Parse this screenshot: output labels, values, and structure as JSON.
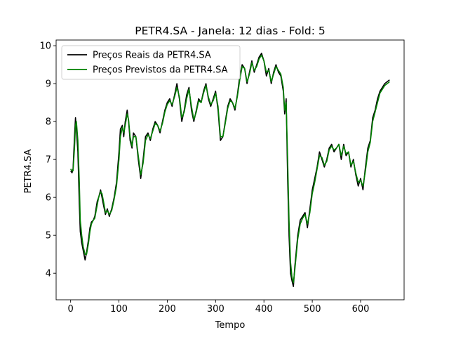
{
  "chart_data": {
    "type": "line",
    "title": "PETR4.SA - Janela: 12 dias - Fold: 5",
    "xlabel": "Tempo",
    "ylabel": "PETR4.SA",
    "xlim": [
      -30,
      690
    ],
    "ylim": [
      3.3,
      10.15
    ],
    "xticks": [
      0,
      100,
      200,
      300,
      400,
      500,
      600
    ],
    "yticks": [
      4,
      5,
      6,
      7,
      8,
      9,
      10
    ],
    "grid": false,
    "legend_position": "upper-left",
    "series": [
      {
        "name": "Preços Reais da PETR4.SA",
        "color": "#000000",
        "x": [
          0,
          3,
          5,
          8,
          10,
          12,
          15,
          18,
          20,
          23,
          26,
          30,
          33,
          37,
          40,
          43,
          47,
          50,
          55,
          58,
          62,
          65,
          68,
          72,
          76,
          80,
          85,
          90,
          95,
          100,
          103,
          107,
          110,
          113,
          117,
          120,
          123,
          127,
          130,
          135,
          140,
          145,
          150,
          155,
          160,
          165,
          170,
          175,
          180,
          185,
          190,
          195,
          200,
          205,
          210,
          215,
          220,
          225,
          230,
          235,
          240,
          245,
          250,
          255,
          260,
          265,
          270,
          275,
          280,
          285,
          290,
          295,
          300,
          305,
          310,
          315,
          320,
          325,
          330,
          335,
          340,
          345,
          350,
          355,
          360,
          365,
          370,
          375,
          380,
          385,
          390,
          395,
          400,
          405,
          410,
          415,
          420,
          425,
          430,
          435,
          440,
          443,
          446,
          449,
          452,
          455,
          458,
          461,
          464,
          467,
          470,
          475,
          480,
          485,
          490,
          495,
          500,
          505,
          510,
          515,
          520,
          525,
          530,
          535,
          540,
          545,
          550,
          555,
          560,
          565,
          570,
          575,
          580,
          585,
          590,
          595,
          600,
          605,
          610,
          615,
          620,
          625,
          630,
          635,
          640,
          645,
          650,
          655,
          660
        ],
        "values": [
          6.7,
          6.65,
          6.75,
          7.6,
          8.1,
          7.8,
          7.2,
          5.8,
          5.1,
          4.8,
          4.6,
          4.35,
          4.55,
          4.9,
          5.2,
          5.35,
          5.4,
          5.5,
          5.9,
          6.0,
          6.2,
          6.0,
          5.8,
          5.55,
          5.7,
          5.5,
          5.7,
          6.0,
          6.4,
          7.2,
          7.8,
          7.9,
          7.6,
          8.0,
          8.3,
          8.0,
          7.5,
          7.3,
          7.7,
          7.6,
          7.0,
          6.5,
          7.0,
          7.6,
          7.7,
          7.5,
          7.8,
          8.0,
          7.9,
          7.7,
          8.0,
          8.3,
          8.5,
          8.6,
          8.4,
          8.7,
          9.0,
          8.6,
          8.0,
          8.3,
          8.7,
          8.9,
          8.3,
          8.0,
          8.3,
          8.6,
          8.5,
          8.8,
          9.0,
          8.6,
          8.4,
          8.6,
          8.8,
          8.3,
          7.5,
          7.6,
          8.0,
          8.4,
          8.6,
          8.5,
          8.3,
          8.7,
          9.2,
          9.5,
          9.4,
          9.0,
          9.3,
          9.6,
          9.3,
          9.5,
          9.7,
          9.8,
          9.6,
          9.2,
          9.4,
          9.0,
          9.3,
          9.5,
          9.3,
          9.2,
          8.8,
          8.2,
          8.6,
          6.5,
          5.0,
          4.0,
          3.8,
          3.65,
          4.2,
          4.6,
          5.0,
          5.4,
          5.5,
          5.6,
          5.2,
          5.7,
          6.2,
          6.5,
          6.8,
          7.2,
          7.0,
          6.8,
          7.0,
          7.3,
          7.4,
          7.2,
          7.3,
          7.4,
          7.0,
          7.4,
          7.1,
          7.2,
          6.8,
          7.0,
          6.6,
          6.3,
          6.5,
          6.2,
          6.8,
          7.3,
          7.5,
          8.1,
          8.3,
          8.6,
          8.8,
          8.9,
          9.0,
          9.05,
          9.1
        ],
        "markers": false
      },
      {
        "name": "Preços Previstos da PETR4.SA",
        "color": "#008000",
        "x": [
          0,
          3,
          5,
          8,
          10,
          12,
          15,
          18,
          20,
          23,
          26,
          30,
          33,
          37,
          40,
          43,
          47,
          50,
          55,
          58,
          62,
          65,
          68,
          72,
          76,
          80,
          85,
          90,
          95,
          100,
          103,
          107,
          110,
          113,
          117,
          120,
          123,
          127,
          130,
          135,
          140,
          145,
          150,
          155,
          160,
          165,
          170,
          175,
          180,
          185,
          190,
          195,
          200,
          205,
          210,
          215,
          220,
          225,
          230,
          235,
          240,
          245,
          250,
          255,
          260,
          265,
          270,
          275,
          280,
          285,
          290,
          295,
          300,
          305,
          310,
          315,
          320,
          325,
          330,
          335,
          340,
          345,
          350,
          355,
          360,
          365,
          370,
          375,
          380,
          385,
          390,
          395,
          400,
          405,
          410,
          415,
          420,
          425,
          430,
          435,
          440,
          443,
          446,
          449,
          452,
          455,
          458,
          461,
          464,
          467,
          470,
          475,
          480,
          485,
          490,
          495,
          500,
          505,
          510,
          515,
          520,
          525,
          530,
          535,
          540,
          545,
          550,
          555,
          560,
          565,
          570,
          575,
          580,
          585,
          590,
          595,
          600,
          605,
          610,
          615,
          620,
          625,
          630,
          635,
          640,
          645,
          650,
          655,
          660
        ],
        "values": [
          6.75,
          6.7,
          6.7,
          7.3,
          7.9,
          8.0,
          7.5,
          6.4,
          5.4,
          5.0,
          4.7,
          4.5,
          4.5,
          4.8,
          5.1,
          5.3,
          5.4,
          5.45,
          5.8,
          6.0,
          6.15,
          6.1,
          5.9,
          5.6,
          5.65,
          5.55,
          5.65,
          5.95,
          6.3,
          7.0,
          7.6,
          7.85,
          7.7,
          7.9,
          8.2,
          8.05,
          7.6,
          7.35,
          7.6,
          7.6,
          7.1,
          6.6,
          6.9,
          7.5,
          7.65,
          7.55,
          7.75,
          7.95,
          7.9,
          7.75,
          7.95,
          8.25,
          8.45,
          8.55,
          8.45,
          8.65,
          8.9,
          8.65,
          8.1,
          8.25,
          8.6,
          8.85,
          8.4,
          8.05,
          8.25,
          8.55,
          8.5,
          8.75,
          8.95,
          8.65,
          8.45,
          8.55,
          8.75,
          8.4,
          7.6,
          7.6,
          7.95,
          8.35,
          8.55,
          8.5,
          8.35,
          8.65,
          9.1,
          9.45,
          9.4,
          9.05,
          9.25,
          9.55,
          9.35,
          9.45,
          9.65,
          9.75,
          9.6,
          9.3,
          9.35,
          9.05,
          9.25,
          9.45,
          9.35,
          9.25,
          8.9,
          8.3,
          8.5,
          7.0,
          5.4,
          4.3,
          3.9,
          3.75,
          4.1,
          4.5,
          4.9,
          5.3,
          5.45,
          5.55,
          5.3,
          5.6,
          6.1,
          6.4,
          6.75,
          7.1,
          7.05,
          6.85,
          6.95,
          7.25,
          7.35,
          7.25,
          7.3,
          7.4,
          7.1,
          7.35,
          7.15,
          7.2,
          6.85,
          6.95,
          6.65,
          6.4,
          6.45,
          6.3,
          6.7,
          7.2,
          7.45,
          8.0,
          8.25,
          8.5,
          8.75,
          8.85,
          8.95,
          9.0,
          9.05
        ],
        "markers": false
      }
    ]
  }
}
